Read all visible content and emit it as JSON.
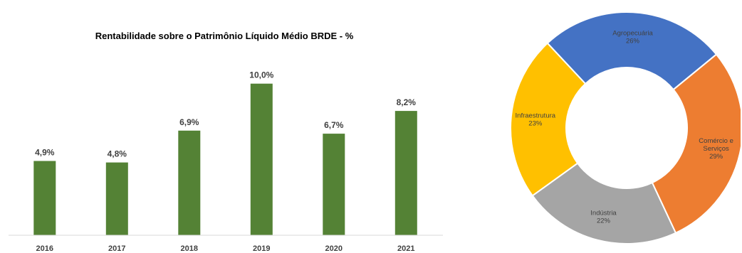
{
  "chart_data": [
    {
      "type": "bar",
      "title": "Rentabilidade sobre o Patrimônio Líquido Médio BRDE - %",
      "categories": [
        "2016",
        "2017",
        "2018",
        "2019",
        "2020",
        "2021"
      ],
      "values": [
        4.9,
        4.8,
        6.9,
        10.0,
        6.7,
        8.2
      ],
      "data_labels": [
        "4,9%",
        "4,8%",
        "6,9%",
        "10,0%",
        "6,7%",
        "8,2%"
      ],
      "ylim": [
        0,
        12
      ],
      "grid": false,
      "bar_color": "#548235"
    },
    {
      "type": "pie",
      "donut": true,
      "slices": [
        {
          "lines": [
            "Agropecuária",
            "26%"
          ],
          "value": 26,
          "color": "#4472C4"
        },
        {
          "lines": [
            "Comércio e",
            "Serviços",
            "29%"
          ],
          "value": 29,
          "color": "#ED7D31"
        },
        {
          "lines": [
            "Indústria",
            "22%"
          ],
          "value": 22,
          "color": "#A5A5A5"
        },
        {
          "lines": [
            "Infraestrutura",
            "23%"
          ],
          "value": 23,
          "color": "#FFC000"
        }
      ]
    }
  ]
}
